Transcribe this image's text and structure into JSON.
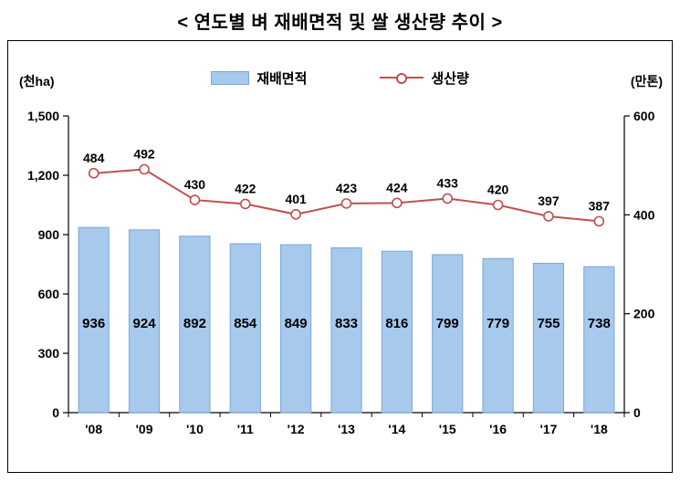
{
  "page": {
    "title": "< 연도별 벼 재배면적 및 쌀 생산량 추이 >"
  },
  "chart_data": {
    "type": "combo-bar-line",
    "title": "연도별 벼 재배면적 및 쌀 생산량 추이",
    "categories": [
      "'08",
      "'09",
      "'10",
      "'11",
      "'12",
      "'13",
      "'14",
      "'15",
      "'16",
      "'17",
      "'18"
    ],
    "series": [
      {
        "name": "재배면적",
        "type": "bar",
        "axis": "left",
        "values": [
          936,
          924,
          892,
          854,
          849,
          833,
          816,
          799,
          779,
          755,
          738
        ],
        "color": "#a7c9ec",
        "border_color": "#7ba7d7"
      },
      {
        "name": "생산량",
        "type": "line",
        "axis": "right",
        "values": [
          484,
          492,
          430,
          422,
          401,
          423,
          424,
          433,
          420,
          397,
          387
        ],
        "color": "#c0504d",
        "marker": "circle-open"
      }
    ],
    "left_axis": {
      "label": "(천ha)",
      "min": 0,
      "max": 1500,
      "step": 300,
      "tick_labels": [
        "0",
        "300",
        "600",
        "900",
        "1,200",
        "1,500"
      ]
    },
    "right_axis": {
      "label": "(만톤)",
      "min": 0,
      "max": 600,
      "step": 200,
      "tick_labels": [
        "0",
        "200",
        "400",
        "600"
      ]
    },
    "legend": [
      "재배면적",
      "생산량"
    ],
    "legend_position": "top-center",
    "grid": false
  }
}
